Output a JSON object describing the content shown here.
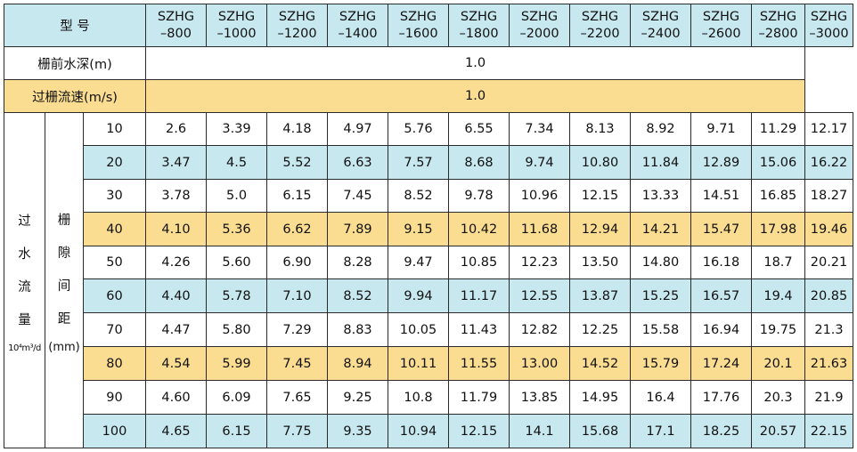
{
  "header": {
    "model_label": "型 号",
    "models": [
      {
        "l1": "SZHG",
        "l2": "–800"
      },
      {
        "l1": "SZHG",
        "l2": "–1000"
      },
      {
        "l1": "SZHG",
        "l2": "–1200"
      },
      {
        "l1": "SZHG",
        "l2": "–1400"
      },
      {
        "l1": "SZHG",
        "l2": "–1600"
      },
      {
        "l1": "SZHG",
        "l2": "–1800"
      },
      {
        "l1": "SZHG",
        "l2": "–2000"
      },
      {
        "l1": "SZHG",
        "l2": "–2200"
      },
      {
        "l1": "SZHG",
        "l2": "–2400"
      },
      {
        "l1": "SZHG",
        "l2": "–2600"
      },
      {
        "l1": "SZHG",
        "l2": "–2800"
      },
      {
        "l1": "SZHG",
        "l2": "–3000"
      }
    ]
  },
  "depth": {
    "label": "栅前水深(m)",
    "value": "1.0"
  },
  "speed": {
    "label": "过栅流速(m/s)",
    "value": "1.0"
  },
  "flow": {
    "chars": [
      "过",
      "水",
      "流",
      "量"
    ],
    "unit": "10⁴m³/d"
  },
  "gap": {
    "chars": [
      "栅",
      "隙",
      "间",
      "距"
    ],
    "unit": "(mm)"
  },
  "rows": [
    {
      "gap": "10",
      "values": [
        "2.6",
        "3.39",
        "4.18",
        "4.97",
        "5.76",
        "6.55",
        "7.34",
        "8.13",
        "8.92",
        "9.71",
        "11.29",
        "12.17"
      ]
    },
    {
      "gap": "20",
      "values": [
        "3.47",
        "4.5",
        "5.52",
        "6.63",
        "7.57",
        "8.68",
        "9.74",
        "10.80",
        "11.84",
        "12.89",
        "15.06",
        "16.22"
      ]
    },
    {
      "gap": "30",
      "values": [
        "3.78",
        "5.0",
        "6.15",
        "7.45",
        "8.52",
        "9.78",
        "10.96",
        "12.15",
        "13.33",
        "14.51",
        "16.85",
        "18.27"
      ]
    },
    {
      "gap": "40",
      "values": [
        "4.10",
        "5.36",
        "6.62",
        "7.89",
        "9.15",
        "10.42",
        "11.68",
        "12.94",
        "14.21",
        "15.47",
        "17.98",
        "19.46"
      ]
    },
    {
      "gap": "50",
      "values": [
        "4.26",
        "5.60",
        "6.90",
        "8.28",
        "9.47",
        "10.85",
        "12.23",
        "13.50",
        "14.80",
        "16.18",
        "18.7",
        "20.21"
      ]
    },
    {
      "gap": "60",
      "values": [
        "4.40",
        "5.78",
        "7.10",
        "8.52",
        "9.94",
        "11.17",
        "12.55",
        "13.87",
        "15.25",
        "16.57",
        "19.4",
        "20.85"
      ]
    },
    {
      "gap": "70",
      "values": [
        "4.47",
        "5.80",
        "7.29",
        "8.83",
        "10.05",
        "11.43",
        "12.82",
        "12.25",
        "15.58",
        "16.94",
        "19.75",
        "21.3"
      ]
    },
    {
      "gap": "80",
      "values": [
        "4.54",
        "5.99",
        "7.45",
        "8.94",
        "10.11",
        "11.55",
        "13.00",
        "14.52",
        "15.79",
        "17.24",
        "20.1",
        "21.63"
      ]
    },
    {
      "gap": "90",
      "values": [
        "4.60",
        "6.09",
        "7.65",
        "9.25",
        "10.8",
        "11.79",
        "13.85",
        "14.95",
        "16.4",
        "17.76",
        "20.3",
        "21.9"
      ]
    },
    {
      "gap": "100",
      "values": [
        "4.65",
        "6.15",
        "7.75",
        "9.35",
        "10.94",
        "12.15",
        "14.1",
        "15.68",
        "17.1",
        "18.25",
        "20.57",
        "22.15"
      ]
    }
  ],
  "colors": {
    "blue": "#c8e8ef",
    "yellow": "#fbdd92",
    "white": "#ffffff",
    "border": "#2a2a2a"
  }
}
